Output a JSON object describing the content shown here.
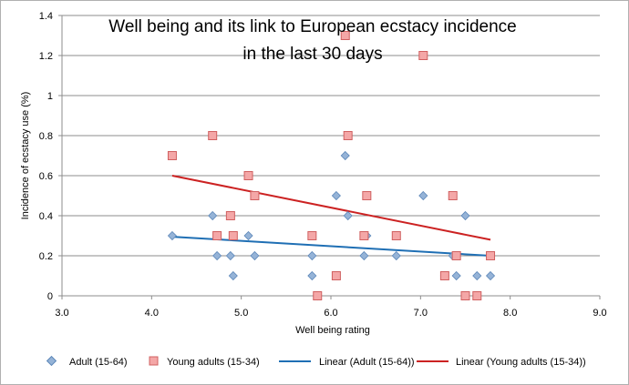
{
  "chart_data": {
    "type": "scatter",
    "title_lines": [
      "Well being and its link to European ecstacy incidence",
      "in the last 30 days"
    ],
    "xlabel": "Well being rating",
    "ylabel": "Incidence of ecstacy use (%)",
    "xlim": [
      3.0,
      9.0
    ],
    "ylim": [
      0,
      1.4
    ],
    "x_ticks": [
      "3.0",
      "4.0",
      "5.0",
      "6.0",
      "7.0",
      "8.0",
      "9.0"
    ],
    "y_ticks": [
      "0",
      "0.2",
      "0.4",
      "0.6",
      "0.8",
      "1",
      "1.2",
      "1.4"
    ],
    "grid": "horizontal",
    "legend_position": "bottom",
    "series": [
      {
        "name": "Adult (15-64)",
        "marker": "diamond",
        "color": "#95b3d7",
        "points": [
          [
            4.23,
            0.3
          ],
          [
            4.68,
            0.4
          ],
          [
            4.73,
            0.2
          ],
          [
            4.88,
            0.2
          ],
          [
            4.91,
            0.1
          ],
          [
            5.08,
            0.3
          ],
          [
            5.15,
            0.2
          ],
          [
            5.79,
            0.2
          ],
          [
            5.79,
            0.1
          ],
          [
            5.85,
            0.0
          ],
          [
            6.06,
            0.5
          ],
          [
            6.16,
            0.7
          ],
          [
            6.19,
            0.4
          ],
          [
            6.37,
            0.2
          ],
          [
            6.4,
            0.3
          ],
          [
            6.73,
            0.2
          ],
          [
            7.03,
            0.5
          ],
          [
            7.27,
            0.1
          ],
          [
            7.36,
            0.2
          ],
          [
            7.4,
            0.1
          ],
          [
            7.5,
            0.4
          ],
          [
            7.5,
            0.0
          ],
          [
            7.63,
            0.1
          ],
          [
            7.78,
            0.1
          ]
        ]
      },
      {
        "name": "Young adults (15-34)",
        "marker": "square",
        "color": "#f4a7a7",
        "points": [
          [
            4.23,
            0.7
          ],
          [
            4.68,
            0.8
          ],
          [
            4.73,
            0.3
          ],
          [
            4.88,
            0.4
          ],
          [
            4.91,
            0.3
          ],
          [
            5.08,
            0.6
          ],
          [
            5.15,
            0.5
          ],
          [
            5.79,
            0.3
          ],
          [
            5.85,
            0.0
          ],
          [
            6.06,
            0.1
          ],
          [
            6.16,
            1.3
          ],
          [
            6.19,
            0.8
          ],
          [
            6.37,
            0.3
          ],
          [
            6.4,
            0.5
          ],
          [
            6.73,
            0.3
          ],
          [
            7.03,
            1.2
          ],
          [
            7.27,
            0.1
          ],
          [
            7.36,
            0.5
          ],
          [
            7.4,
            0.2
          ],
          [
            7.5,
            0.0
          ],
          [
            7.63,
            0.0
          ],
          [
            7.78,
            0.2
          ]
        ]
      }
    ],
    "trendlines": [
      {
        "name": "Linear (Adult (15-64))",
        "color": "#1f6fb4",
        "x": [
          4.23,
          7.78
        ],
        "y": [
          0.295,
          0.2
        ]
      },
      {
        "name": "Linear (Young adults (15-34))",
        "color": "#cc2222",
        "x": [
          4.23,
          7.78
        ],
        "y": [
          0.6,
          0.28
        ]
      }
    ]
  }
}
